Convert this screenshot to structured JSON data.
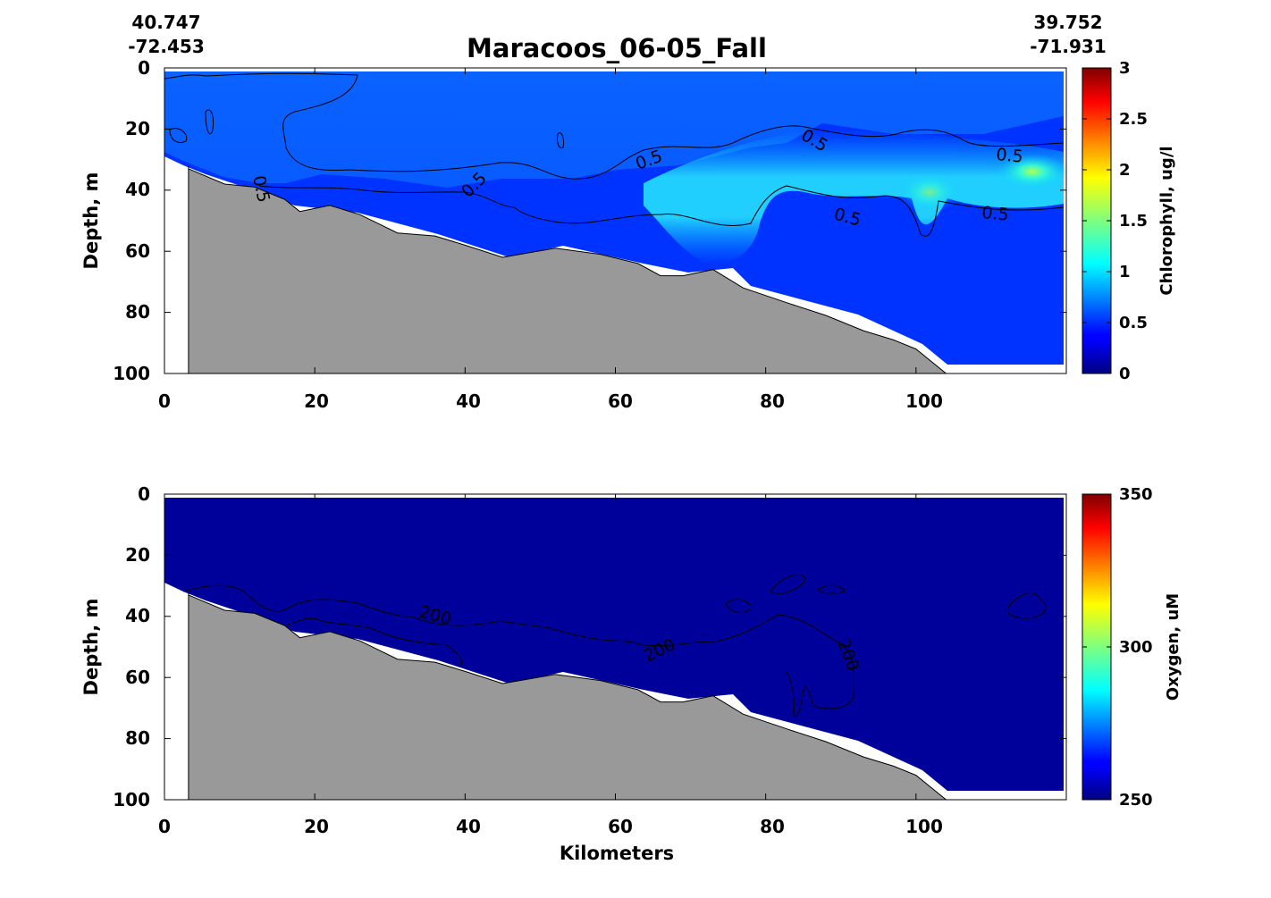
{
  "figure": {
    "title": "Maracoos_06-05_Fall",
    "start_lat": "40.747",
    "start_lon": "-72.453",
    "end_lat": "39.752",
    "end_lon": "-71.931",
    "xlabel": "Kilometers"
  },
  "chart_data": [
    {
      "type": "heatmap",
      "variable": "Chlorophyll",
      "ylabel": "Depth, m",
      "colorbar_label": "Chlorophyll, ug/l",
      "xlim": [
        0,
        120
      ],
      "ylim": [
        100,
        0
      ],
      "y_reversed": true,
      "xticks": [
        0,
        20,
        40,
        60,
        80,
        100
      ],
      "yticks": [
        0,
        20,
        40,
        60,
        80,
        100
      ],
      "clim": [
        0,
        3
      ],
      "cbar_ticks": [
        "0",
        "0.5",
        "1",
        "1.5",
        "2",
        "2.5",
        "3"
      ],
      "colormap": "jet",
      "contour_levels": [
        "0.5"
      ],
      "bottom_profile": {
        "km": [
          3.2,
          3.2,
          8,
          12,
          16,
          18,
          22,
          26,
          31,
          36,
          40,
          45,
          52,
          58,
          63,
          66,
          69,
          73,
          77,
          83,
          88,
          93,
          97,
          100,
          104
        ],
        "depth": [
          32,
          33,
          38,
          39,
          43,
          47,
          45,
          48,
          54,
          55,
          58,
          62,
          59,
          61,
          64,
          68,
          68,
          66,
          72,
          77,
          81,
          86,
          89,
          92,
          100
        ]
      },
      "surface_value": 0.45,
      "deep_value": 0.2,
      "subsurface_maximum": {
        "km": [
          78,
          118
        ],
        "depth": [
          25,
          45
        ],
        "peak_value": 2.0,
        "peak_km": 113,
        "peak_depth": 34
      }
    },
    {
      "type": "heatmap",
      "variable": "Oxygen",
      "ylabel": "Depth, m",
      "colorbar_label": "Oxygen, uM",
      "xlim": [
        0,
        120
      ],
      "ylim": [
        100,
        0
      ],
      "y_reversed": true,
      "xticks": [
        0,
        20,
        40,
        60,
        80,
        100
      ],
      "yticks": [
        0,
        20,
        40,
        60,
        80,
        100
      ],
      "clim": [
        250,
        350
      ],
      "cbar_ticks": [
        "250",
        "300",
        "350"
      ],
      "colormap": "jet",
      "contour_levels": [
        "200"
      ],
      "bottom_profile": {
        "km": [
          3.2,
          3.2,
          8,
          12,
          16,
          18,
          22,
          26,
          31,
          36,
          40,
          45,
          52,
          58,
          63,
          66,
          69,
          73,
          77,
          83,
          88,
          93,
          97,
          100,
          104
        ],
        "depth": [
          32,
          33,
          38,
          39,
          43,
          47,
          45,
          48,
          54,
          55,
          58,
          62,
          59,
          61,
          64,
          68,
          68,
          66,
          72,
          77,
          81,
          86,
          89,
          92,
          100
        ]
      },
      "field_value": 250
    }
  ]
}
